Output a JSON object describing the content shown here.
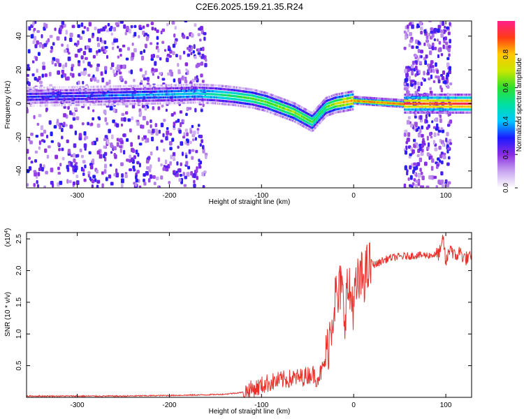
{
  "title": "C2E6.2025.159.21.35.R24",
  "chart_data": [
    {
      "type": "heatmap",
      "xlabel": "Height of straight line (km)",
      "ylabel": "Frequency (Hz)",
      "xlim": [
        -355,
        128
      ],
      "ylim": [
        -50,
        49
      ],
      "xticks": [
        -300,
        -200,
        -100,
        0,
        100
      ],
      "yticks": [
        -40,
        -20,
        0,
        20,
        40
      ],
      "colorbar": {
        "label": "Normalized spectral amplitude",
        "range": [
          0,
          1
        ],
        "ticks": [
          "0.0",
          "0.2",
          "0.4",
          "0.6",
          "0.8"
        ],
        "colors": [
          "#ffffff",
          "#c7a4ef",
          "#8a2be2",
          "#1a1aff",
          "#00c8ff",
          "#00e0a0",
          "#2ee02e",
          "#c8e600",
          "#ffc800",
          "#ff3c14",
          "#ff1e8c"
        ]
      },
      "ridge": {
        "x": [
          -355,
          -300,
          -250,
          -200,
          -170,
          -150,
          -130,
          -110,
          -95,
          -80,
          -65,
          -55,
          -45,
          -40,
          -30,
          -20,
          -10,
          0,
          55,
          75,
          100,
          115,
          128
        ],
        "y": [
          4,
          4.5,
          5,
          5.5,
          6,
          5.5,
          4.5,
          3,
          1,
          -2,
          -5,
          -8,
          -11,
          -8,
          -2,
          0,
          1,
          2,
          0,
          0,
          0,
          0,
          0
        ],
        "peak_amplitude": [
          0.3,
          0.3,
          0.35,
          0.4,
          0.45,
          0.5,
          0.55,
          0.6,
          0.62,
          0.65,
          0.68,
          0.65,
          0.6,
          0.55,
          0.6,
          0.7,
          0.8,
          0.85,
          0.9,
          0.9,
          0.9,
          0.95,
          0.95
        ]
      },
      "noise_bands_x": [
        [
          -355,
          -160
        ],
        [
          55,
          105
        ]
      ]
    },
    {
      "type": "line",
      "xlabel": "Height of straight line (km)",
      "ylabel": "SNR (10 * v/v)",
      "scale_label": "(x10",
      "scale_exponent": "4",
      "xlim": [
        -355,
        128
      ],
      "ylim": [
        0,
        2.6
      ],
      "xticks": [
        -300,
        -200,
        -100,
        0,
        100
      ],
      "yticks": [
        "0.5",
        "1.0",
        "1.5",
        "2.0",
        "2.5"
      ],
      "color": "#e8312b",
      "series": [
        {
          "x": [
            -355,
            -300,
            -250,
            -200,
            -160,
            -140,
            -120,
            -105,
            -95,
            -85,
            -75,
            -65,
            -55,
            -45,
            -40,
            -35,
            -30,
            -27,
            -24,
            -20,
            -17,
            -14,
            -10,
            -7,
            -4,
            0,
            5,
            10,
            15,
            20,
            25,
            30,
            40,
            50,
            60,
            70,
            80,
            90,
            95,
            97,
            100,
            105,
            110,
            115,
            120,
            128
          ],
          "y": [
            0.02,
            0.02,
            0.02,
            0.03,
            0.04,
            0.05,
            0.08,
            0.15,
            0.22,
            0.25,
            0.28,
            0.3,
            0.32,
            0.38,
            0.3,
            0.4,
            0.6,
            0.9,
            1.2,
            1.6,
            1.5,
            1.8,
            1.3,
            1.7,
            1.6,
            1.5,
            1.8,
            1.9,
            2.0,
            2.1,
            2.1,
            2.15,
            2.2,
            2.22,
            2.23,
            2.24,
            2.24,
            2.25,
            2.3,
            2.55,
            2.1,
            2.4,
            2.2,
            2.3,
            2.2,
            2.18
          ]
        }
      ]
    }
  ]
}
